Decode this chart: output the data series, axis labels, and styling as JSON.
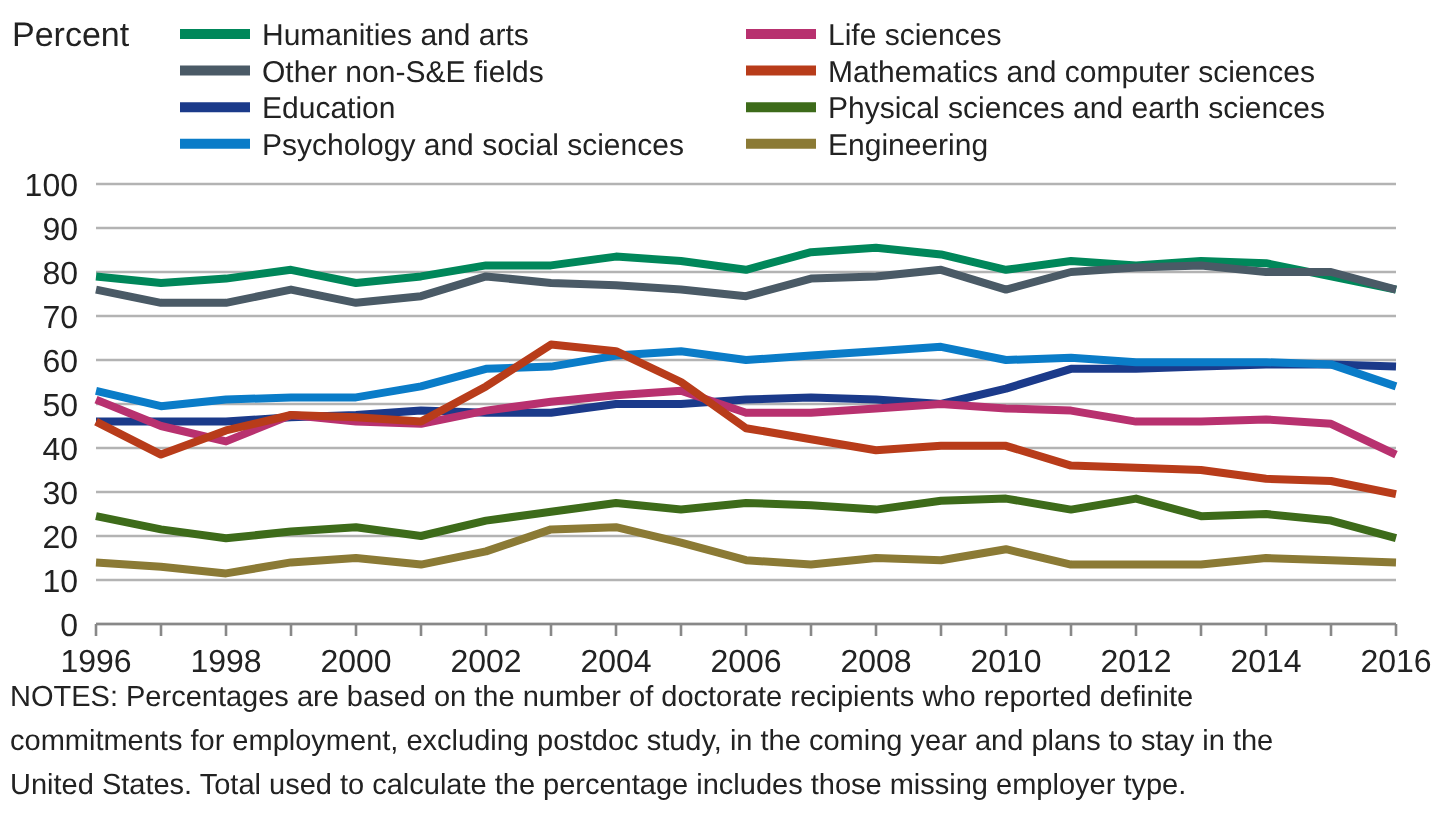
{
  "chart_data": {
    "type": "line",
    "ylabel": "Percent",
    "x": [
      1996,
      1997,
      1998,
      1999,
      2000,
      2001,
      2002,
      2003,
      2004,
      2005,
      2006,
      2007,
      2008,
      2009,
      2010,
      2011,
      2012,
      2013,
      2014,
      2015,
      2016
    ],
    "series": [
      {
        "name": "Humanities and arts",
        "color": "#00875a",
        "values": [
          79,
          77.5,
          78.5,
          80.5,
          77.5,
          79,
          81.5,
          81.5,
          83.5,
          82.5,
          80.5,
          84.5,
          85.5,
          84,
          80.5,
          82.5,
          81.5,
          82.5,
          82,
          79,
          76
        ]
      },
      {
        "name": "Other non-S&E fields",
        "color": "#4a5a66",
        "values": [
          76,
          73,
          73,
          76,
          73,
          74.5,
          79,
          77.5,
          77,
          76,
          74.5,
          78.5,
          79,
          80.5,
          76,
          80,
          81,
          81.5,
          80,
          80,
          76
        ]
      },
      {
        "name": "Education",
        "color": "#1b3a8a",
        "values": [
          46,
          46,
          46,
          47,
          47.5,
          48.5,
          48,
          48,
          50,
          50,
          51,
          51.5,
          51,
          50,
          53.5,
          58,
          58,
          58.5,
          59,
          59,
          58.5
        ]
      },
      {
        "name": "Psychology and social sciences",
        "color": "#0a7cc8",
        "values": [
          53,
          49.5,
          51,
          51.5,
          51.5,
          54,
          58,
          58.5,
          61,
          62,
          60,
          61,
          62,
          63,
          60,
          60.5,
          59.5,
          59.5,
          59.5,
          59,
          54
        ]
      },
      {
        "name": "Life sciences",
        "color": "#b8316f",
        "values": [
          51,
          45,
          41.5,
          47.5,
          46,
          45.5,
          48.5,
          50.5,
          52,
          53,
          48,
          48,
          49,
          50,
          49,
          48.5,
          46,
          46,
          46.5,
          45.5,
          38.5
        ]
      },
      {
        "name": "Mathematics and computer sciences",
        "color": "#b83c1a",
        "values": [
          46,
          38.5,
          44,
          47.5,
          47,
          46,
          54,
          63.5,
          62,
          55,
          44.5,
          42,
          39.5,
          40.5,
          40.5,
          36,
          35.5,
          35,
          33,
          32.5,
          29.5
        ]
      },
      {
        "name": "Physical sciences and earth sciences",
        "color": "#3d6b1a",
        "values": [
          24.5,
          21.5,
          19.5,
          21,
          22,
          20,
          23.5,
          25.5,
          27.5,
          26,
          27.5,
          27,
          26,
          28,
          28.5,
          26,
          28.5,
          24.5,
          25,
          23.5,
          19.5
        ]
      },
      {
        "name": "Engineering",
        "color": "#8b7a35",
        "values": [
          14,
          13,
          11.5,
          14,
          15,
          13.5,
          16.5,
          21.5,
          22,
          18.5,
          14.5,
          13.5,
          15,
          14.5,
          17,
          13.5,
          13.5,
          13.5,
          15,
          14.5,
          14
        ]
      }
    ],
    "xlim": [
      1996,
      2016
    ],
    "xticks": [
      1996,
      {
        "value": 1997,
        "label": null
      },
      1998,
      {
        "value": 1999,
        "label": null
      },
      2000,
      {
        "value": 2001,
        "label": null
      },
      2002,
      {
        "value": 2003,
        "label": null
      },
      2004,
      {
        "value": 2005,
        "label": null
      },
      2006,
      {
        "value": 2007,
        "label": null
      },
      2008,
      {
        "value": 2009,
        "label": null
      },
      2010,
      {
        "value": 2011,
        "label": null
      },
      2012,
      {
        "value": 2013,
        "label": null
      },
      2014,
      {
        "value": 2015,
        "label": null
      },
      2016
    ],
    "ylim": [
      0,
      100
    ],
    "yticks": [
      0,
      10,
      20,
      30,
      40,
      50,
      60,
      70,
      80,
      90,
      100
    ],
    "grid": "y",
    "legend": "top",
    "marker": "none",
    "line_style": "solid",
    "annotations": [
      "NOTES: Percentages are based on the number of doctorate recipients who reported definite commitments for employment, excluding postdoc study, in the coming year and plans to stay in the United States. Total used to calculate the percentage includes those missing employer type."
    ]
  }
}
